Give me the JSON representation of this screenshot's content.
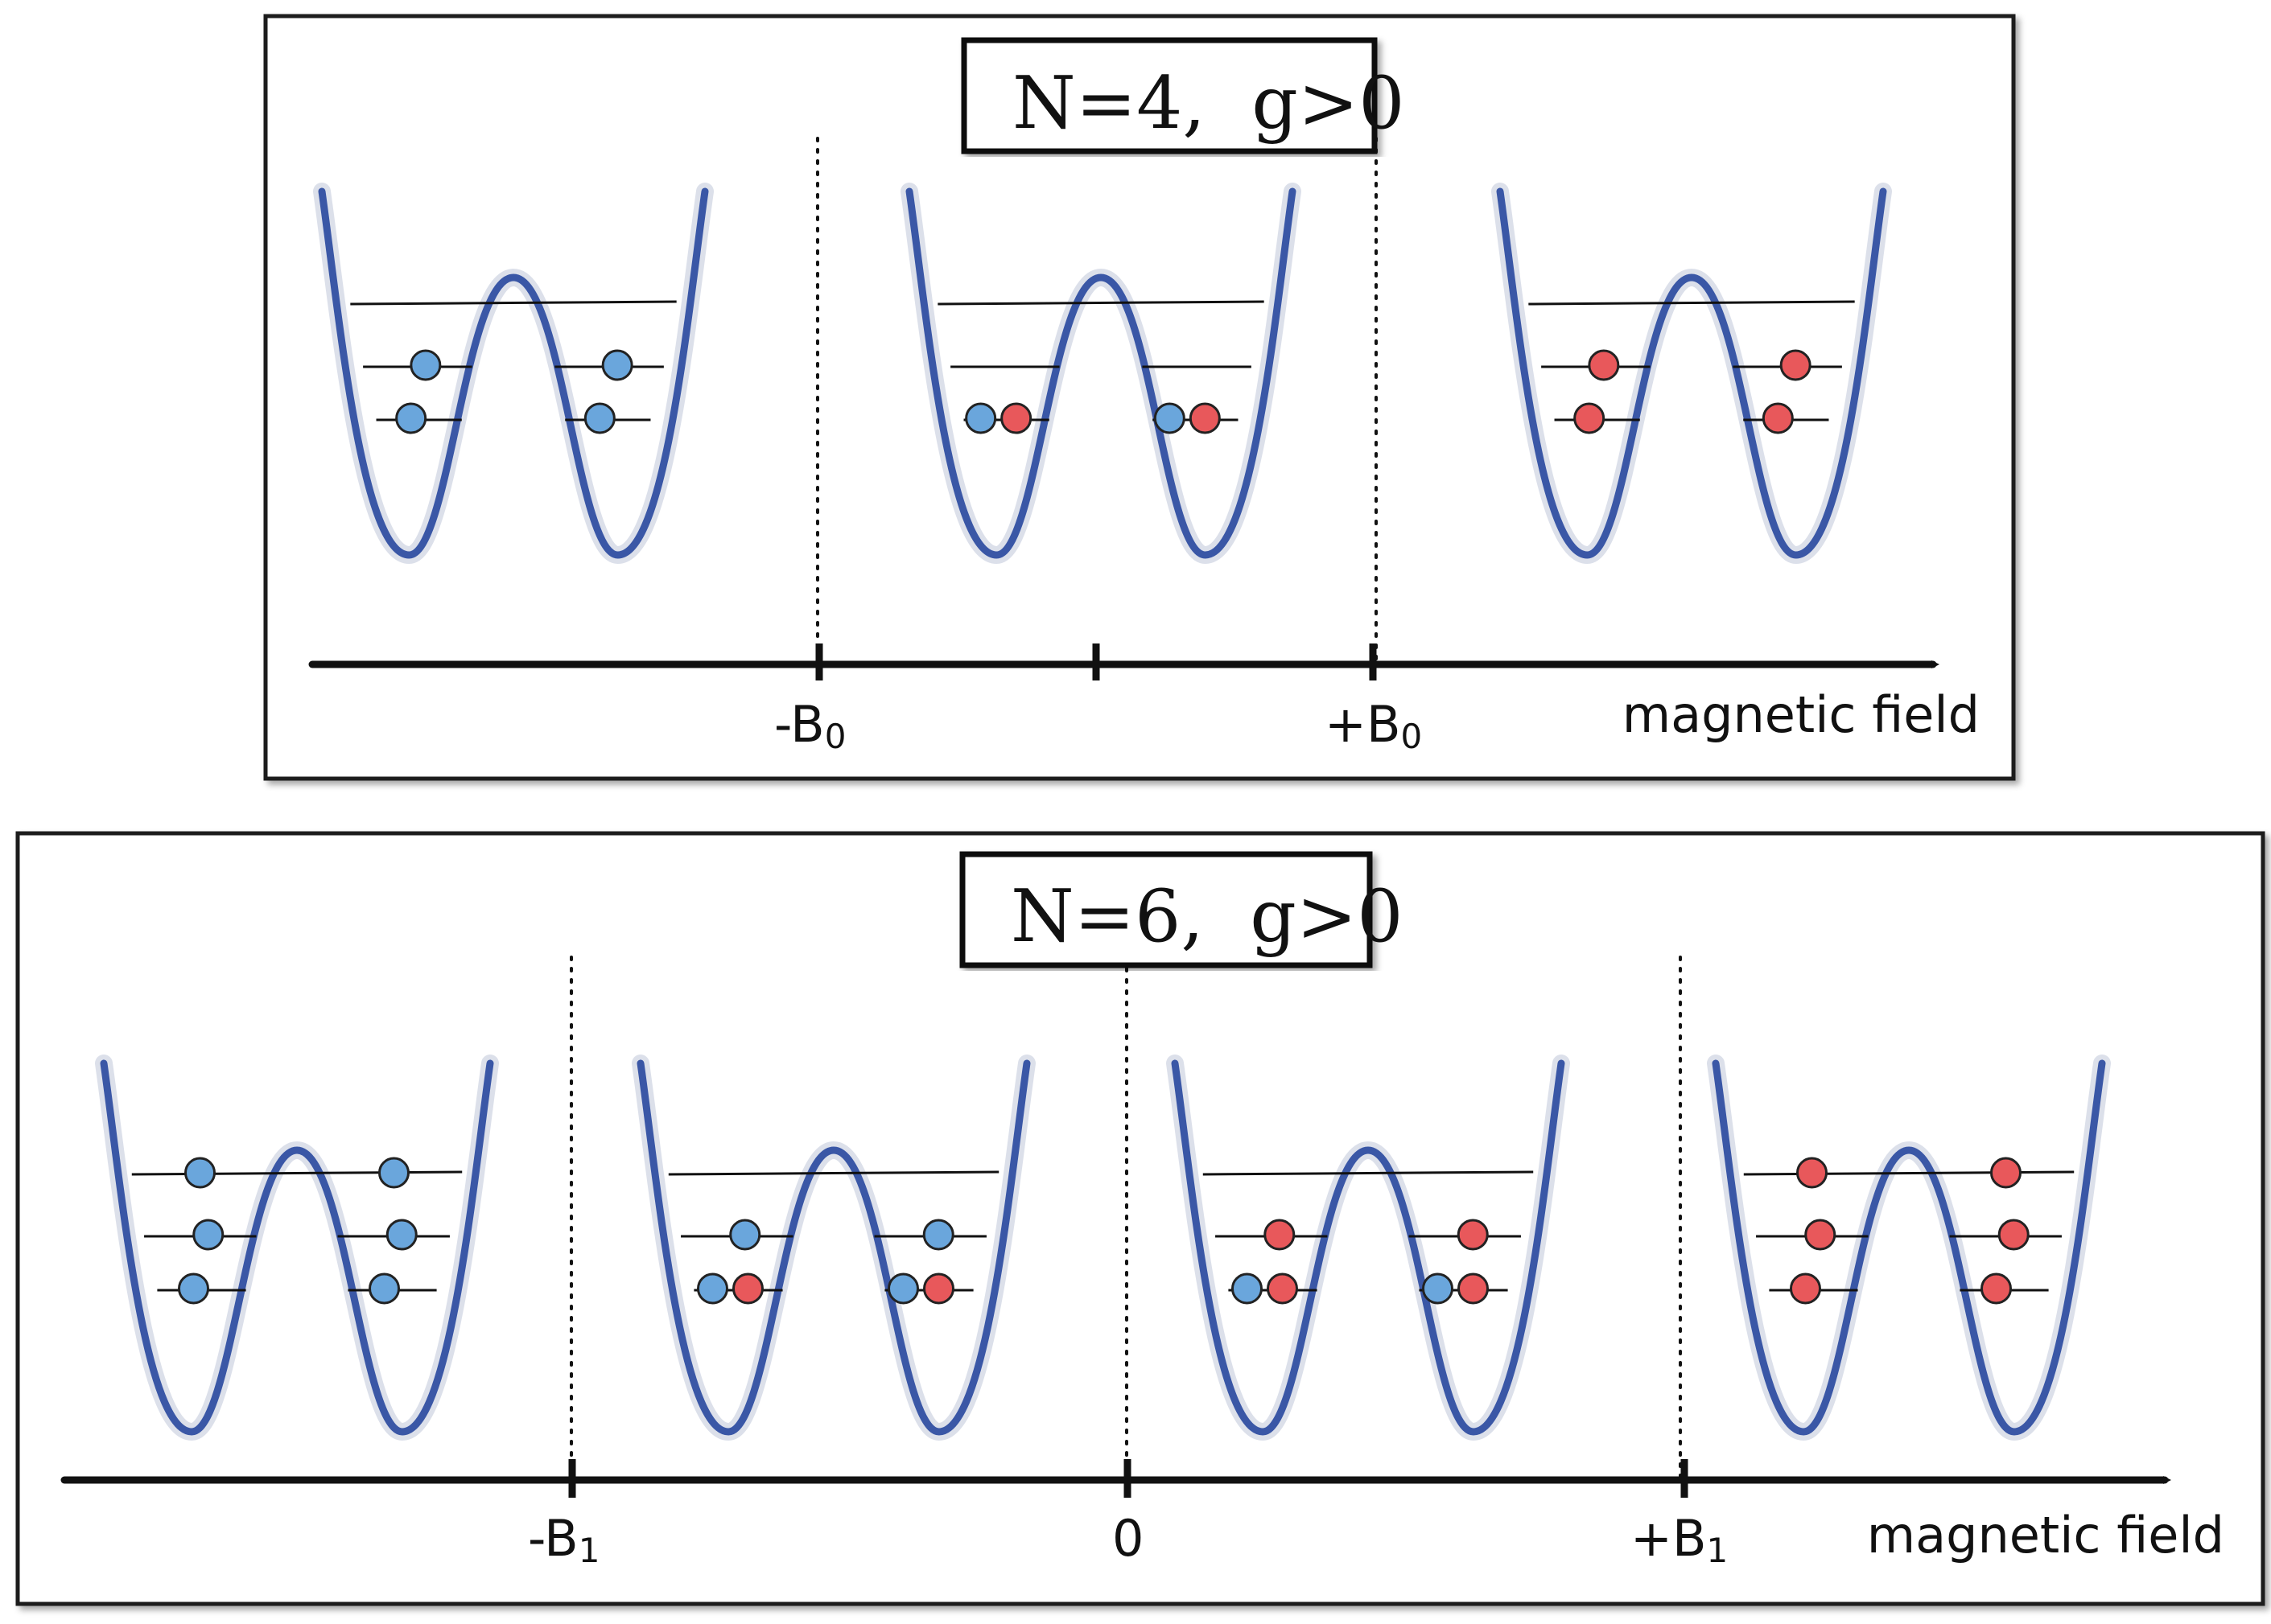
{
  "colors": {
    "spin_up": "#6aa6dc",
    "spin_down": "#e8585b",
    "well": "#3a57a6"
  },
  "panels": [
    {
      "title": "N=4,  g>0",
      "axis_label": "magnetic field",
      "ticks": [
        {
          "label": "-B",
          "sub": "0"
        },
        {
          "label": "",
          "sub": ""
        },
        {
          "label": "+B",
          "sub": "0"
        }
      ],
      "wells": [
        {
          "levels": 3,
          "particles": [
            {
              "level": 2,
              "side": "left",
              "spin": "up"
            },
            {
              "level": 1,
              "side": "left",
              "spin": "up"
            },
            {
              "level": 2,
              "side": "right",
              "spin": "up"
            },
            {
              "level": 1,
              "side": "right",
              "spin": "up"
            }
          ]
        },
        {
          "levels": 3,
          "particles": [
            {
              "level": 1,
              "side": "left",
              "spin": "up"
            },
            {
              "level": 1,
              "side": "left",
              "spin": "down"
            },
            {
              "level": 1,
              "side": "right",
              "spin": "up"
            },
            {
              "level": 1,
              "side": "right",
              "spin": "down"
            }
          ]
        },
        {
          "levels": 3,
          "particles": [
            {
              "level": 2,
              "side": "left",
              "spin": "down"
            },
            {
              "level": 1,
              "side": "left",
              "spin": "down"
            },
            {
              "level": 2,
              "side": "right",
              "spin": "down"
            },
            {
              "level": 1,
              "side": "right",
              "spin": "down"
            }
          ]
        }
      ]
    },
    {
      "title": "N=6,  g>0",
      "axis_label": "magnetic field",
      "ticks": [
        {
          "label": "-B",
          "sub": "1"
        },
        {
          "label": "0",
          "sub": ""
        },
        {
          "label": "+B",
          "sub": "1"
        }
      ],
      "wells": [
        {
          "levels": 3,
          "particles": [
            {
              "level": 3,
              "side": "left",
              "spin": "up"
            },
            {
              "level": 2,
              "side": "left",
              "spin": "up"
            },
            {
              "level": 1,
              "side": "left",
              "spin": "up"
            },
            {
              "level": 3,
              "side": "right",
              "spin": "up"
            },
            {
              "level": 2,
              "side": "right",
              "spin": "up"
            },
            {
              "level": 1,
              "side": "right",
              "spin": "up"
            }
          ]
        },
        {
          "levels": 3,
          "particles": [
            {
              "level": 2,
              "side": "left",
              "spin": "up"
            },
            {
              "level": 1,
              "side": "left",
              "spin": "up"
            },
            {
              "level": 1,
              "side": "left",
              "spin": "down"
            },
            {
              "level": 2,
              "side": "right",
              "spin": "up"
            },
            {
              "level": 1,
              "side": "right",
              "spin": "up"
            },
            {
              "level": 1,
              "side": "right",
              "spin": "down"
            }
          ]
        },
        {
          "levels": 3,
          "particles": [
            {
              "level": 2,
              "side": "left",
              "spin": "down"
            },
            {
              "level": 1,
              "side": "left",
              "spin": "up"
            },
            {
              "level": 1,
              "side": "left",
              "spin": "down"
            },
            {
              "level": 2,
              "side": "right",
              "spin": "down"
            },
            {
              "level": 1,
              "side": "right",
              "spin": "up"
            },
            {
              "level": 1,
              "side": "right",
              "spin": "down"
            }
          ]
        },
        {
          "levels": 3,
          "particles": [
            {
              "level": 3,
              "side": "left",
              "spin": "down"
            },
            {
              "level": 2,
              "side": "left",
              "spin": "down"
            },
            {
              "level": 1,
              "side": "left",
              "spin": "down"
            },
            {
              "level": 3,
              "side": "right",
              "spin": "down"
            },
            {
              "level": 2,
              "side": "right",
              "spin": "down"
            },
            {
              "level": 1,
              "side": "right",
              "spin": "down"
            }
          ]
        }
      ]
    }
  ]
}
